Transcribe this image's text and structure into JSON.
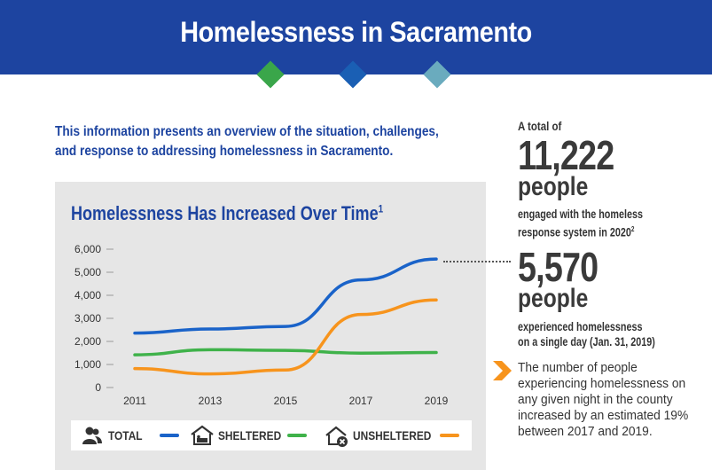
{
  "header": {
    "title": "Homelessness in Sacramento",
    "background": "#1d44a0",
    "diamond_colors": [
      "#3aa64a",
      "#1a5fb4",
      "#6aabbe"
    ]
  },
  "intro": {
    "line1": "This information presents an overview of the situation, challenges,",
    "line2": "and response to addressing homelessness in Sacramento."
  },
  "chart_data": {
    "type": "line",
    "title": "Homelessness Has Increased Over Time",
    "title_footnote": "1",
    "x": [
      "2011",
      "2013",
      "2015",
      "2017",
      "2019"
    ],
    "ylim": [
      0,
      6000
    ],
    "yticks": [
      "0",
      "1,000",
      "2,000",
      "3,000",
      "4,000",
      "5,000",
      "6,000"
    ],
    "ytick_values": [
      0,
      1000,
      2000,
      3000,
      4000,
      5000,
      6000
    ],
    "grid": false,
    "legend_position": "bottom",
    "series": [
      {
        "name": "TOTAL",
        "color": "#1a63c9",
        "values": [
          2360,
          2540,
          2650,
          4670,
          5570
        ]
      },
      {
        "name": "SHELTERED",
        "color": "#3fb24a",
        "values": [
          1420,
          1640,
          1610,
          1490,
          1520
        ]
      },
      {
        "name": "UNSHELTERED",
        "color": "#f7941d",
        "values": [
          820,
          590,
          760,
          3170,
          3800
        ]
      }
    ]
  },
  "legend_icons": [
    "people-icon",
    "shelter-icon",
    "house-x-icon"
  ],
  "stats": {
    "total_prefix": "A total of",
    "total_number": "11,222",
    "total_unit": "people",
    "total_desc_line1": "engaged with the homeless",
    "total_desc_line2": "response system in 2020",
    "total_footnote": "2",
    "single_day_number": "5,570",
    "single_day_unit": "people",
    "single_day_desc_line1": "experienced homelessness",
    "single_day_desc_line2": "on a single day (Jan. 31, 2019)",
    "note": "The number of people experiencing homelessness on any given night in the county increased by an estimated 19% between 2017 and 2019.",
    "chevron_color": "#f7941d"
  }
}
